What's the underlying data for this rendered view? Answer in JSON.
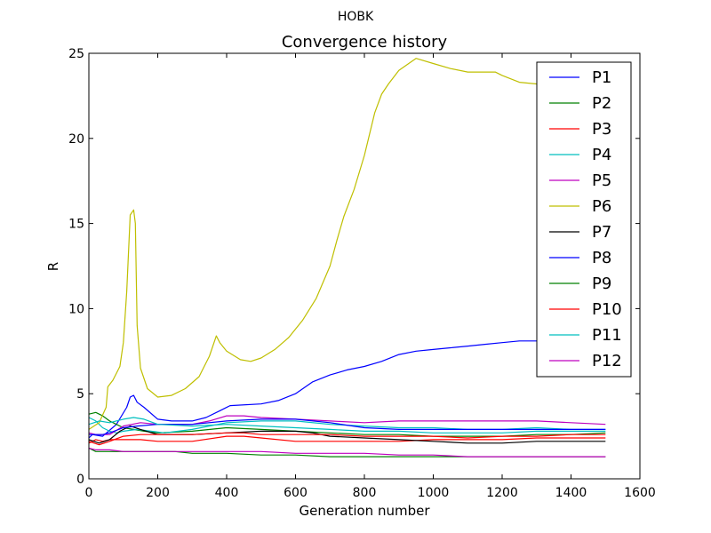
{
  "suptitle": "HOBK",
  "chart_data": {
    "type": "line",
    "title": "Convergence history",
    "xlabel": "Generation number",
    "ylabel": "R",
    "xlim": [
      0,
      1600
    ],
    "ylim": [
      0,
      25
    ],
    "xticks": [
      0,
      200,
      400,
      600,
      800,
      1000,
      1200,
      1400,
      1600
    ],
    "yticks": [
      0,
      5,
      10,
      15,
      20,
      25
    ],
    "grid": false,
    "legend_position": "top-right",
    "series": [
      {
        "name": "P1",
        "color": "#0000ff",
        "x": [
          0,
          10,
          40,
          80,
          110,
          120,
          130,
          140,
          160,
          200,
          240,
          260,
          300,
          340,
          380,
          410,
          500,
          550,
          600,
          650,
          700,
          750,
          800,
          850,
          900,
          950,
          1000,
          1050,
          1100,
          1150,
          1200,
          1250,
          1300,
          1350
        ],
        "y": [
          2.4,
          2.6,
          2.5,
          3.2,
          4.2,
          4.8,
          4.9,
          4.5,
          4.2,
          3.5,
          3.4,
          3.4,
          3.4,
          3.6,
          4.0,
          4.3,
          4.4,
          4.6,
          5.0,
          5.7,
          6.1,
          6.4,
          6.6,
          6.9,
          7.3,
          7.5,
          7.6,
          7.7,
          7.8,
          7.9,
          8.0,
          8.1,
          8.1,
          8.2
        ]
      },
      {
        "name": "P2",
        "color": "#008000",
        "x": [
          0,
          20,
          40,
          60,
          80,
          100,
          130,
          160,
          200,
          300,
          400,
          500,
          600,
          700,
          800,
          900,
          1000,
          1100,
          1200,
          1300,
          1400,
          1500
        ],
        "y": [
          3.8,
          3.9,
          3.7,
          3.4,
          3.2,
          3.0,
          2.9,
          2.8,
          2.7,
          2.8,
          3.0,
          2.9,
          2.8,
          2.7,
          2.6,
          2.6,
          2.5,
          2.5,
          2.5,
          2.6,
          2.6,
          2.7
        ]
      },
      {
        "name": "P3",
        "color": "#ff0000",
        "x": [
          0,
          20,
          40,
          60,
          100,
          150,
          200,
          300,
          400,
          450,
          500,
          600,
          700,
          800,
          900,
          1000,
          1100,
          1200,
          1300,
          1400,
          1500
        ],
        "y": [
          2.1,
          2.3,
          2.2,
          2.3,
          2.3,
          2.3,
          2.2,
          2.2,
          2.5,
          2.5,
          2.4,
          2.2,
          2.2,
          2.2,
          2.2,
          2.3,
          2.3,
          2.3,
          2.4,
          2.4,
          2.4
        ]
      },
      {
        "name": "P4",
        "color": "#00bfbf",
        "x": [
          0,
          20,
          40,
          60,
          80,
          100,
          140,
          180,
          220,
          300,
          400,
          500,
          600,
          700,
          800,
          900,
          1000,
          1100,
          1200,
          1300,
          1400,
          1500
        ],
        "y": [
          3.6,
          3.4,
          3.0,
          2.8,
          2.7,
          2.8,
          2.9,
          2.8,
          2.7,
          2.9,
          3.3,
          3.4,
          3.4,
          3.2,
          3.1,
          3.0,
          3.0,
          2.9,
          2.9,
          3.0,
          2.9,
          2.9
        ]
      },
      {
        "name": "P5",
        "color": "#bf00bf",
        "x": [
          0,
          20,
          60,
          100,
          150,
          200,
          300,
          350,
          400,
          450,
          500,
          600,
          700,
          800,
          900,
          1000,
          1100,
          1200,
          1300,
          1400,
          1500
        ],
        "y": [
          2.7,
          2.6,
          2.6,
          3.1,
          3.3,
          3.2,
          3.2,
          3.4,
          3.7,
          3.7,
          3.6,
          3.5,
          3.4,
          3.3,
          3.4,
          3.4,
          3.4,
          3.4,
          3.4,
          3.3,
          3.2
        ]
      },
      {
        "name": "P6",
        "color": "#bfbf00",
        "x": [
          0,
          30,
          50,
          55,
          70,
          90,
          100,
          110,
          120,
          130,
          135,
          140,
          150,
          170,
          200,
          240,
          280,
          320,
          350,
          370,
          380,
          400,
          440,
          470,
          500,
          540,
          580,
          620,
          660,
          700,
          720,
          740,
          770,
          800,
          830,
          850,
          870,
          900,
          950,
          1000,
          1050,
          1100,
          1150,
          1180,
          1200,
          1250,
          1300,
          1350
        ],
        "y": [
          2.9,
          3.3,
          4.2,
          5.4,
          5.8,
          6.6,
          8.0,
          11.0,
          15.5,
          15.8,
          15.0,
          9.0,
          6.5,
          5.3,
          4.8,
          4.9,
          5.3,
          6.0,
          7.2,
          8.4,
          8.0,
          7.5,
          7.0,
          6.9,
          7.1,
          7.6,
          8.3,
          9.3,
          10.6,
          12.5,
          14.0,
          15.4,
          17.0,
          19.0,
          21.5,
          22.6,
          23.2,
          24.0,
          24.7,
          24.4,
          24.1,
          23.9,
          23.9,
          23.9,
          23.7,
          23.3,
          23.2,
          23.2
        ]
      },
      {
        "name": "P7",
        "color": "#000000",
        "x": [
          0,
          30,
          60,
          90,
          120,
          150,
          200,
          300,
          400,
          500,
          600,
          650,
          700,
          800,
          900,
          1000,
          1100,
          1200,
          1300,
          1400,
          1500
        ],
        "y": [
          2.3,
          2.1,
          2.3,
          2.8,
          3.1,
          2.9,
          2.6,
          2.6,
          2.7,
          2.8,
          2.8,
          2.7,
          2.5,
          2.4,
          2.3,
          2.2,
          2.1,
          2.1,
          2.2,
          2.2,
          2.2
        ]
      },
      {
        "name": "P8",
        "color": "#0000ff",
        "x": [
          0,
          20,
          40,
          60,
          100,
          140,
          200,
          300,
          400,
          500,
          600,
          700,
          800,
          900,
          1000,
          1100,
          1200,
          1300,
          1400,
          1500
        ],
        "y": [
          2.6,
          2.6,
          2.6,
          2.7,
          3.0,
          3.1,
          3.2,
          3.2,
          3.4,
          3.5,
          3.5,
          3.3,
          3.0,
          2.9,
          2.9,
          2.9,
          2.9,
          2.9,
          2.9,
          2.9
        ]
      },
      {
        "name": "P9",
        "color": "#008000",
        "x": [
          0,
          20,
          50,
          80,
          120,
          200,
          250,
          300,
          400,
          500,
          600,
          700,
          800,
          900,
          1000,
          1100,
          1200,
          1300,
          1400,
          1500
        ],
        "y": [
          1.8,
          1.6,
          1.6,
          1.6,
          1.6,
          1.6,
          1.6,
          1.5,
          1.5,
          1.4,
          1.4,
          1.3,
          1.3,
          1.3,
          1.3,
          1.3,
          1.3,
          1.3,
          1.3,
          1.3
        ]
      },
      {
        "name": "P10",
        "color": "#ff0000",
        "x": [
          0,
          30,
          60,
          100,
          150,
          200,
          250,
          300,
          400,
          450,
          500,
          600,
          700,
          800,
          900,
          1000,
          1100,
          1200,
          1300,
          1400,
          1500
        ],
        "y": [
          2.2,
          2.0,
          2.2,
          2.5,
          2.6,
          2.6,
          2.6,
          2.6,
          2.7,
          2.7,
          2.6,
          2.6,
          2.6,
          2.5,
          2.5,
          2.5,
          2.4,
          2.5,
          2.5,
          2.6,
          2.6
        ]
      },
      {
        "name": "P11",
        "color": "#00bfbf",
        "x": [
          0,
          30,
          60,
          100,
          130,
          160,
          200,
          300,
          400,
          500,
          600,
          700,
          800,
          900,
          1000,
          1100,
          1200,
          1300,
          1400,
          1500
        ],
        "y": [
          3.2,
          3.4,
          3.3,
          3.5,
          3.6,
          3.5,
          3.2,
          3.1,
          3.2,
          3.1,
          3.0,
          2.9,
          2.8,
          2.8,
          2.7,
          2.7,
          2.7,
          2.8,
          2.8,
          2.8
        ]
      },
      {
        "name": "P12",
        "color": "#bf00bf",
        "x": [
          0,
          20,
          60,
          100,
          150,
          200,
          300,
          400,
          500,
          600,
          700,
          800,
          900,
          1000,
          1100,
          1200,
          1300,
          1400,
          1500
        ],
        "y": [
          1.8,
          1.7,
          1.7,
          1.6,
          1.6,
          1.6,
          1.6,
          1.6,
          1.6,
          1.5,
          1.5,
          1.5,
          1.4,
          1.4,
          1.3,
          1.3,
          1.3,
          1.3,
          1.3
        ]
      }
    ]
  }
}
